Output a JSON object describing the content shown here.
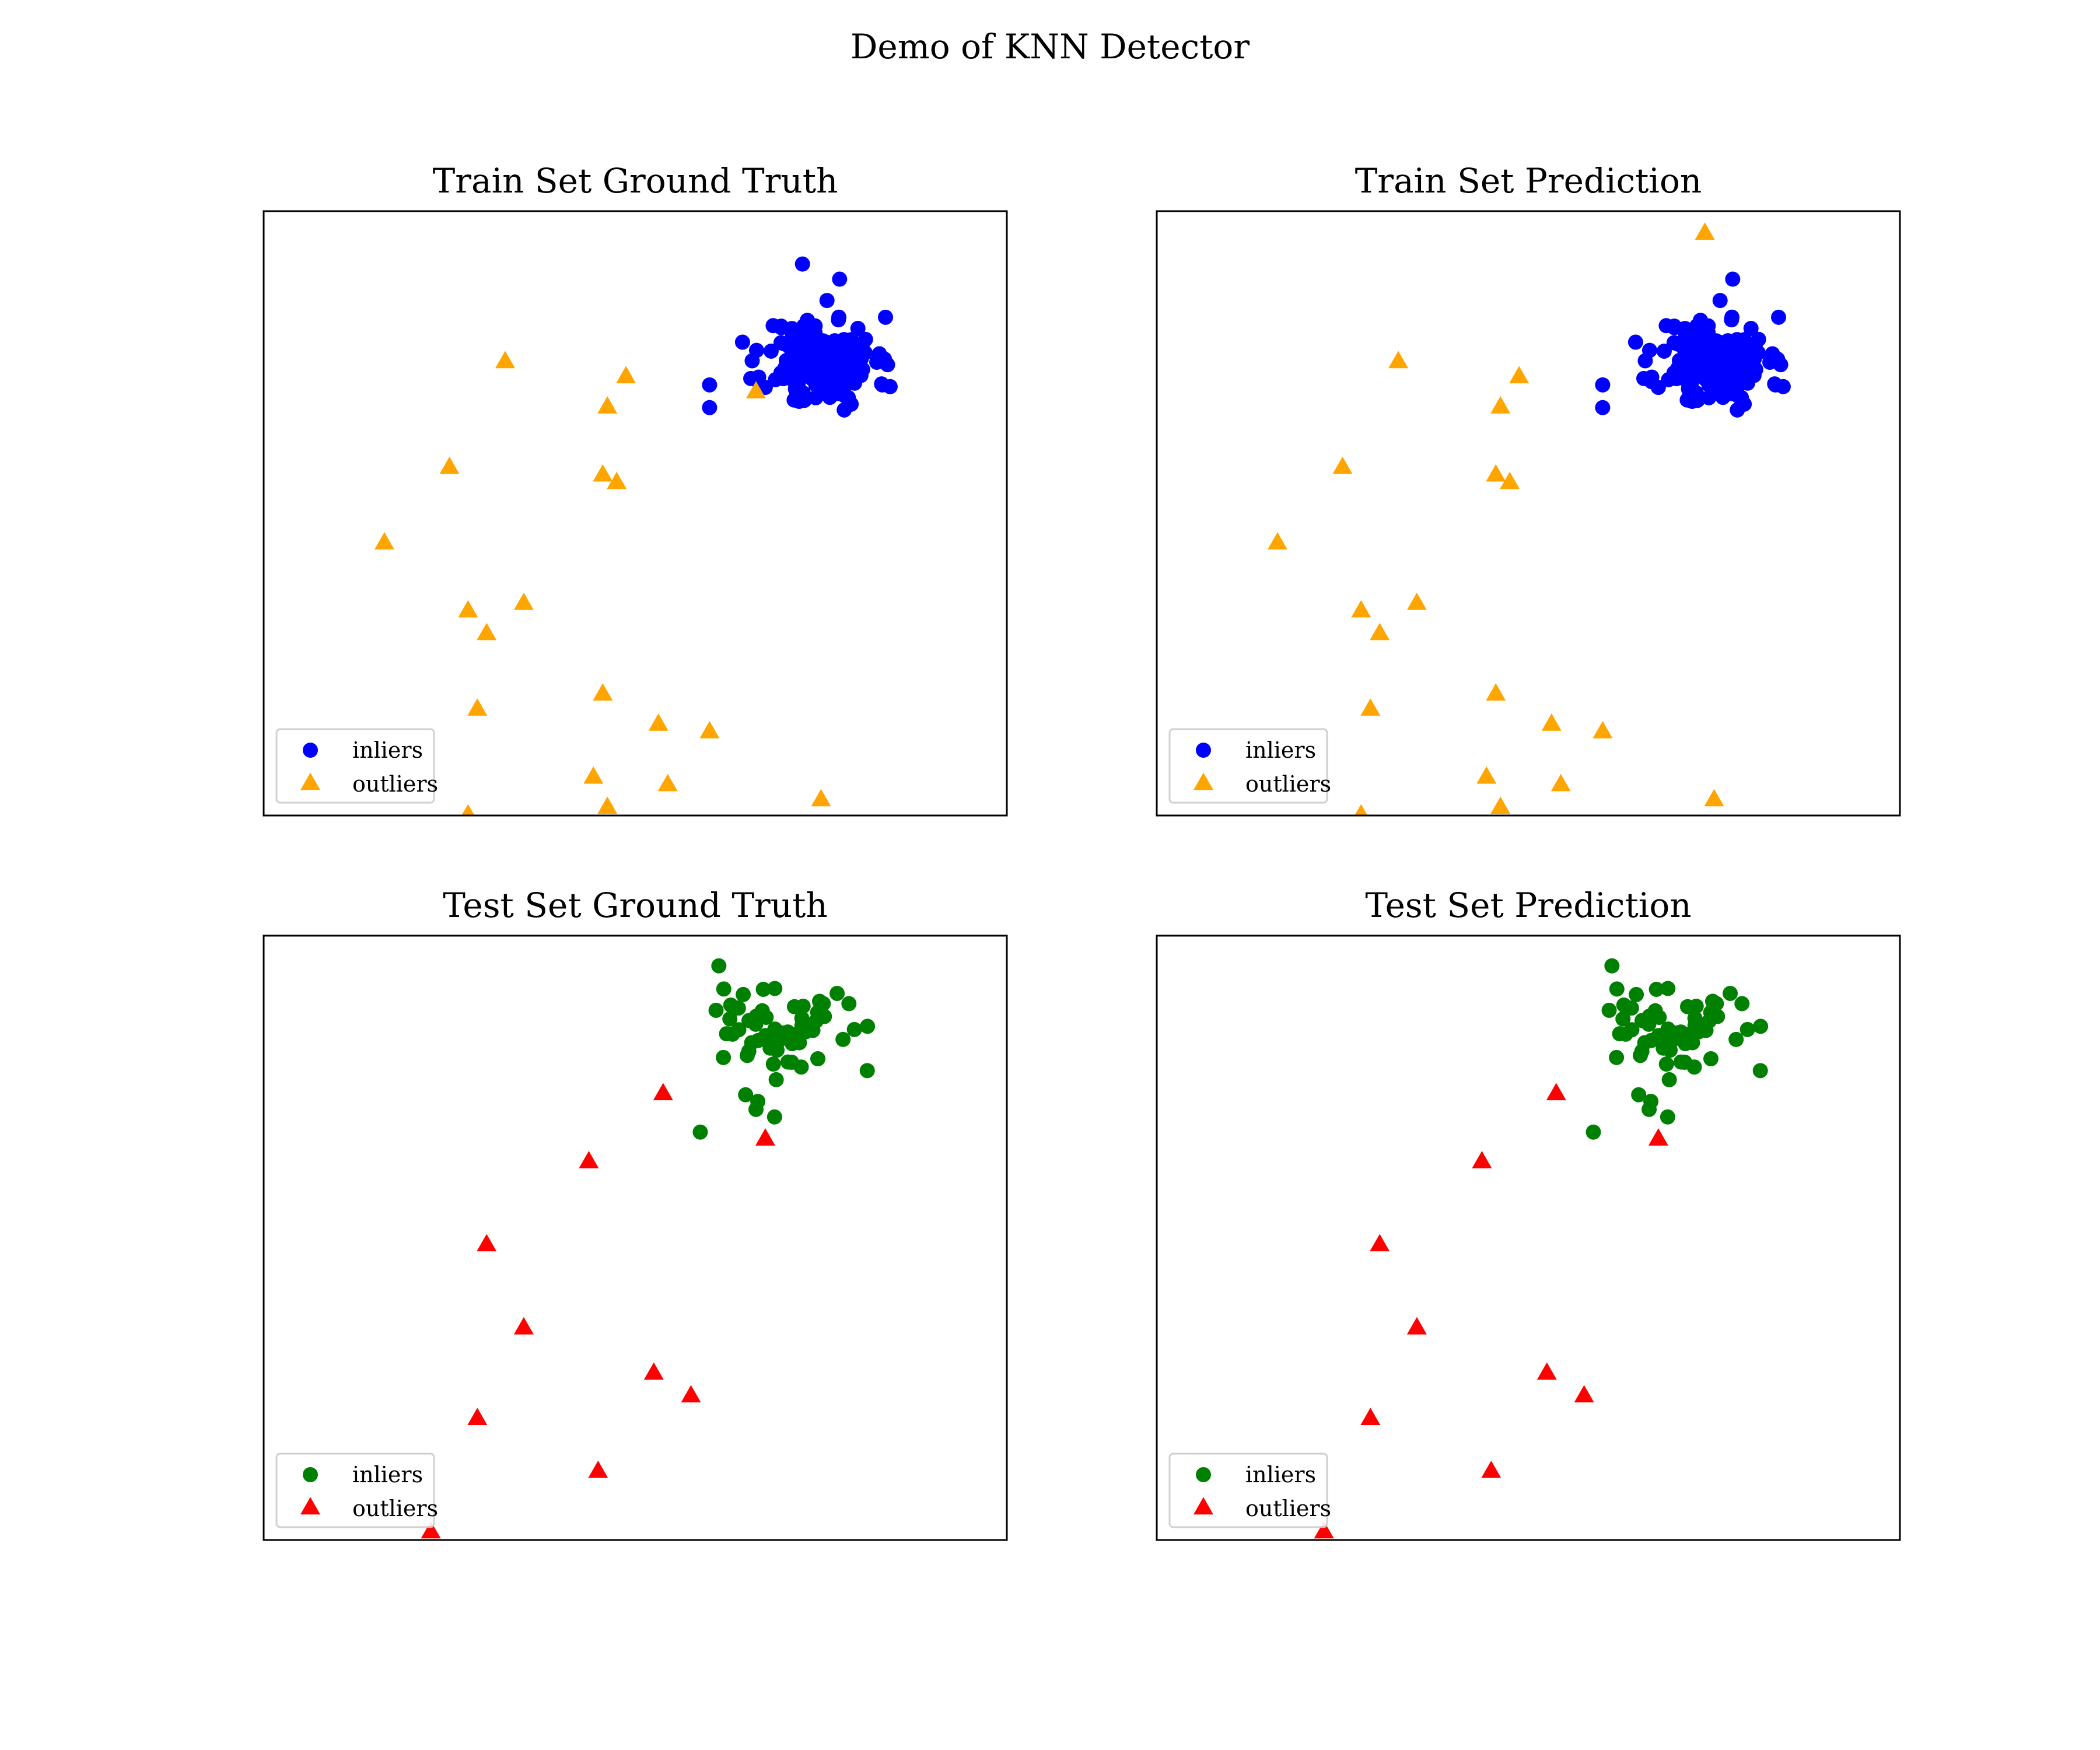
{
  "figure": {
    "suptitle": "Demo of KNN Detector"
  },
  "chart_data": [
    {
      "type": "scatter",
      "title": "Train Set Ground Truth",
      "xlim": [
        -4,
        4
      ],
      "ylim": [
        -4,
        4
      ],
      "grid": false,
      "ticks": false,
      "legend": {
        "position": "lower-left"
      },
      "series": [
        {
          "name": "inliers",
          "color": "#0000ff",
          "marker": "circle",
          "cluster": {
            "cx": 2.0,
            "cy": 2.0,
            "sd": 0.3,
            "n": 180,
            "seed": 11
          },
          "points": [
            [
              1.8,
              3.3
            ],
            [
              2.2,
              3.1
            ],
            [
              0.8,
              1.7
            ],
            [
              2.6,
              2.0
            ],
            [
              0.8,
              1.4
            ]
          ]
        },
        {
          "name": "outliers",
          "color": "#ffa500",
          "marker": "triangle",
          "points": [
            [
              -1.4,
              2.0
            ],
            [
              -0.1,
              1.8
            ],
            [
              -0.3,
              1.4
            ],
            [
              -2.0,
              0.6
            ],
            [
              -0.35,
              0.5
            ],
            [
              -0.2,
              0.4
            ],
            [
              -2.7,
              -0.4
            ],
            [
              -1.8,
              -1.3
            ],
            [
              -1.2,
              -1.2
            ],
            [
              -1.6,
              -1.6
            ],
            [
              -0.35,
              -2.4
            ],
            [
              -1.7,
              -2.6
            ],
            [
              0.25,
              -2.8
            ],
            [
              0.8,
              -2.9
            ],
            [
              -0.45,
              -3.5
            ],
            [
              0.35,
              -3.6
            ],
            [
              -0.3,
              -3.9
            ],
            [
              -1.8,
              -4.0
            ],
            [
              2.0,
              -3.8
            ],
            [
              1.3,
              1.6
            ]
          ]
        }
      ]
    },
    {
      "type": "scatter",
      "title": "Train Set Prediction",
      "xlim": [
        -4,
        4
      ],
      "ylim": [
        -4,
        4
      ],
      "grid": false,
      "ticks": false,
      "legend": {
        "position": "lower-left"
      },
      "series": [
        {
          "name": "inliers",
          "color": "#0000ff",
          "marker": "circle",
          "cluster": {
            "cx": 2.0,
            "cy": 2.0,
            "sd": 0.3,
            "n": 180,
            "seed": 11
          },
          "points": [
            [
              2.2,
              3.1
            ],
            [
              0.8,
              1.7
            ],
            [
              2.6,
              2.0
            ],
            [
              0.8,
              1.4
            ]
          ]
        },
        {
          "name": "outliers",
          "color": "#ffa500",
          "marker": "triangle",
          "points": [
            [
              -1.4,
              2.0
            ],
            [
              -0.1,
              1.8
            ],
            [
              -0.3,
              1.4
            ],
            [
              -2.0,
              0.6
            ],
            [
              -0.35,
              0.5
            ],
            [
              -0.2,
              0.4
            ],
            [
              -2.7,
              -0.4
            ],
            [
              -1.8,
              -1.3
            ],
            [
              -1.2,
              -1.2
            ],
            [
              -1.6,
              -1.6
            ],
            [
              -0.35,
              -2.4
            ],
            [
              -1.7,
              -2.6
            ],
            [
              0.25,
              -2.8
            ],
            [
              0.8,
              -2.9
            ],
            [
              -0.45,
              -3.5
            ],
            [
              0.35,
              -3.6
            ],
            [
              -0.3,
              -3.9
            ],
            [
              -1.8,
              -4.0
            ],
            [
              2.0,
              -3.8
            ],
            [
              1.9,
              3.7
            ]
          ]
        }
      ]
    },
    {
      "type": "scatter",
      "title": "Test Set Ground Truth",
      "xlim": [
        -4,
        4
      ],
      "ylim": [
        -4,
        4
      ],
      "grid": false,
      "ticks": false,
      "legend": {
        "position": "lower-left"
      },
      "series": [
        {
          "name": "inliers",
          "color": "#008000",
          "marker": "circle",
          "cluster": {
            "cx": 1.5,
            "cy": 2.7,
            "sd": 0.32,
            "n": 60,
            "seed": 7
          },
          "points": [
            [
              0.9,
              3.6
            ],
            [
              2.3,
              3.1
            ],
            [
              2.5,
              2.8
            ],
            [
              0.7,
              1.4
            ],
            [
              1.5,
              1.6
            ],
            [
              1.3,
              1.7
            ]
          ]
        },
        {
          "name": "outliers",
          "color": "#ff0000",
          "marker": "triangle",
          "points": [
            [
              0.3,
              1.9
            ],
            [
              1.4,
              1.3
            ],
            [
              -0.5,
              1.0
            ],
            [
              -1.6,
              -0.1
            ],
            [
              -1.2,
              -1.2
            ],
            [
              0.2,
              -1.8
            ],
            [
              0.6,
              -2.1
            ],
            [
              -1.7,
              -2.4
            ],
            [
              -0.4,
              -3.1
            ],
            [
              -2.2,
              -3.9
            ]
          ]
        }
      ]
    },
    {
      "type": "scatter",
      "title": "Test Set Prediction",
      "xlim": [
        -4,
        4
      ],
      "ylim": [
        -4,
        4
      ],
      "grid": false,
      "ticks": false,
      "legend": {
        "position": "lower-left"
      },
      "series": [
        {
          "name": "inliers",
          "color": "#008000",
          "marker": "circle",
          "cluster": {
            "cx": 1.5,
            "cy": 2.7,
            "sd": 0.32,
            "n": 60,
            "seed": 7
          },
          "points": [
            [
              0.9,
              3.6
            ],
            [
              2.3,
              3.1
            ],
            [
              2.5,
              2.8
            ],
            [
              0.7,
              1.4
            ],
            [
              1.5,
              1.6
            ],
            [
              1.3,
              1.7
            ]
          ]
        },
        {
          "name": "outliers",
          "color": "#ff0000",
          "marker": "triangle",
          "points": [
            [
              0.3,
              1.9
            ],
            [
              1.4,
              1.3
            ],
            [
              -0.5,
              1.0
            ],
            [
              -1.6,
              -0.1
            ],
            [
              -1.2,
              -1.2
            ],
            [
              0.2,
              -1.8
            ],
            [
              0.6,
              -2.1
            ],
            [
              -1.7,
              -2.4
            ],
            [
              -0.4,
              -3.1
            ],
            [
              -2.2,
              -3.9
            ]
          ]
        }
      ]
    }
  ]
}
